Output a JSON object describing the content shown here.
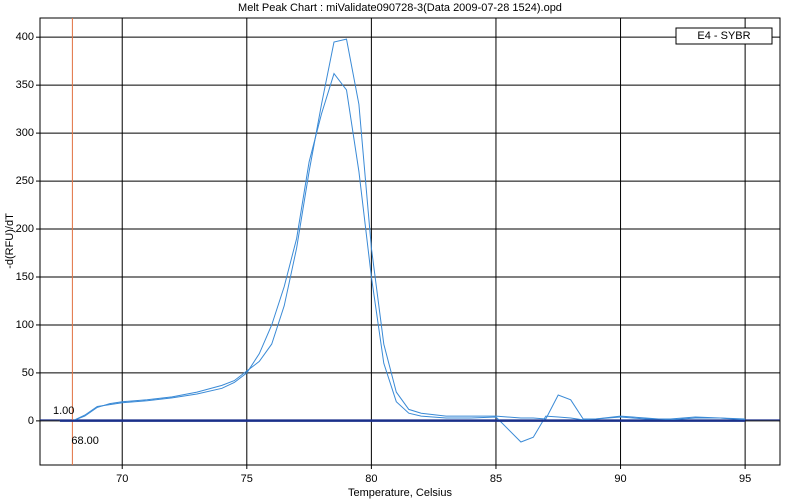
{
  "chart_data": {
    "type": "line",
    "title": "Melt Peak Chart : miValidate090728-3(Data 2009-07-28 1524).opd",
    "x_label": "Temperature, Celsius",
    "y_label": "-d(RFU)/dT",
    "legend": "E4 - SYBR",
    "x": [
      67.5,
      68,
      68.5,
      69,
      69.5,
      70,
      71,
      72,
      73,
      74,
      74.5,
      75,
      75.5,
      76,
      76.5,
      77,
      77.5,
      78,
      78.5,
      79,
      79.5,
      80,
      80.5,
      81,
      81.5,
      82,
      83,
      84,
      85,
      86,
      86.5,
      87,
      87.5,
      88,
      88.5,
      89,
      90,
      91,
      92,
      93,
      94,
      95
    ],
    "series": [
      {
        "color": "#3a8ad6",
        "values": [
          0,
          0,
          5,
          14,
          18,
          20,
          22,
          25,
          30,
          37,
          42,
          52,
          62,
          80,
          120,
          180,
          260,
          330,
          395,
          398,
          330,
          180,
          80,
          30,
          12,
          8,
          5,
          5,
          5,
          3,
          3,
          2,
          27,
          22,
          2,
          2,
          4,
          2,
          2,
          4,
          3,
          1
        ]
      },
      {
        "color": "#3a8ad6",
        "values": [
          0,
          0,
          6,
          15,
          17,
          19,
          21,
          24,
          28,
          34,
          40,
          50,
          70,
          100,
          140,
          190,
          270,
          320,
          362,
          345,
          260,
          150,
          60,
          20,
          8,
          5,
          3,
          3,
          4,
          -22,
          -17,
          5,
          4,
          3,
          1,
          2,
          5,
          3,
          1,
          3,
          3,
          2
        ]
      },
      {
        "color": "#1a2f8a",
        "values": [
          0,
          0,
          0,
          0,
          0,
          0,
          0,
          0,
          0,
          0,
          0,
          0,
          0,
          0,
          0,
          0,
          0,
          0,
          0,
          0,
          0,
          0,
          0,
          0,
          0,
          0,
          0,
          0,
          0,
          0,
          0,
          0,
          0,
          0,
          0,
          0,
          0,
          0,
          0,
          0,
          0,
          0
        ]
      }
    ],
    "threshold": {
      "value": 1,
      "label": "1.00"
    },
    "marker": {
      "value": 68,
      "label": "68.00"
    },
    "xlim": [
      66.7,
      96.4
    ],
    "ylim": [
      -46,
      420
    ],
    "xticks": [
      70,
      75,
      80,
      85,
      90,
      95
    ],
    "yticks": [
      0,
      50,
      100,
      150,
      200,
      250,
      300,
      350,
      400
    ],
    "grid": true
  }
}
